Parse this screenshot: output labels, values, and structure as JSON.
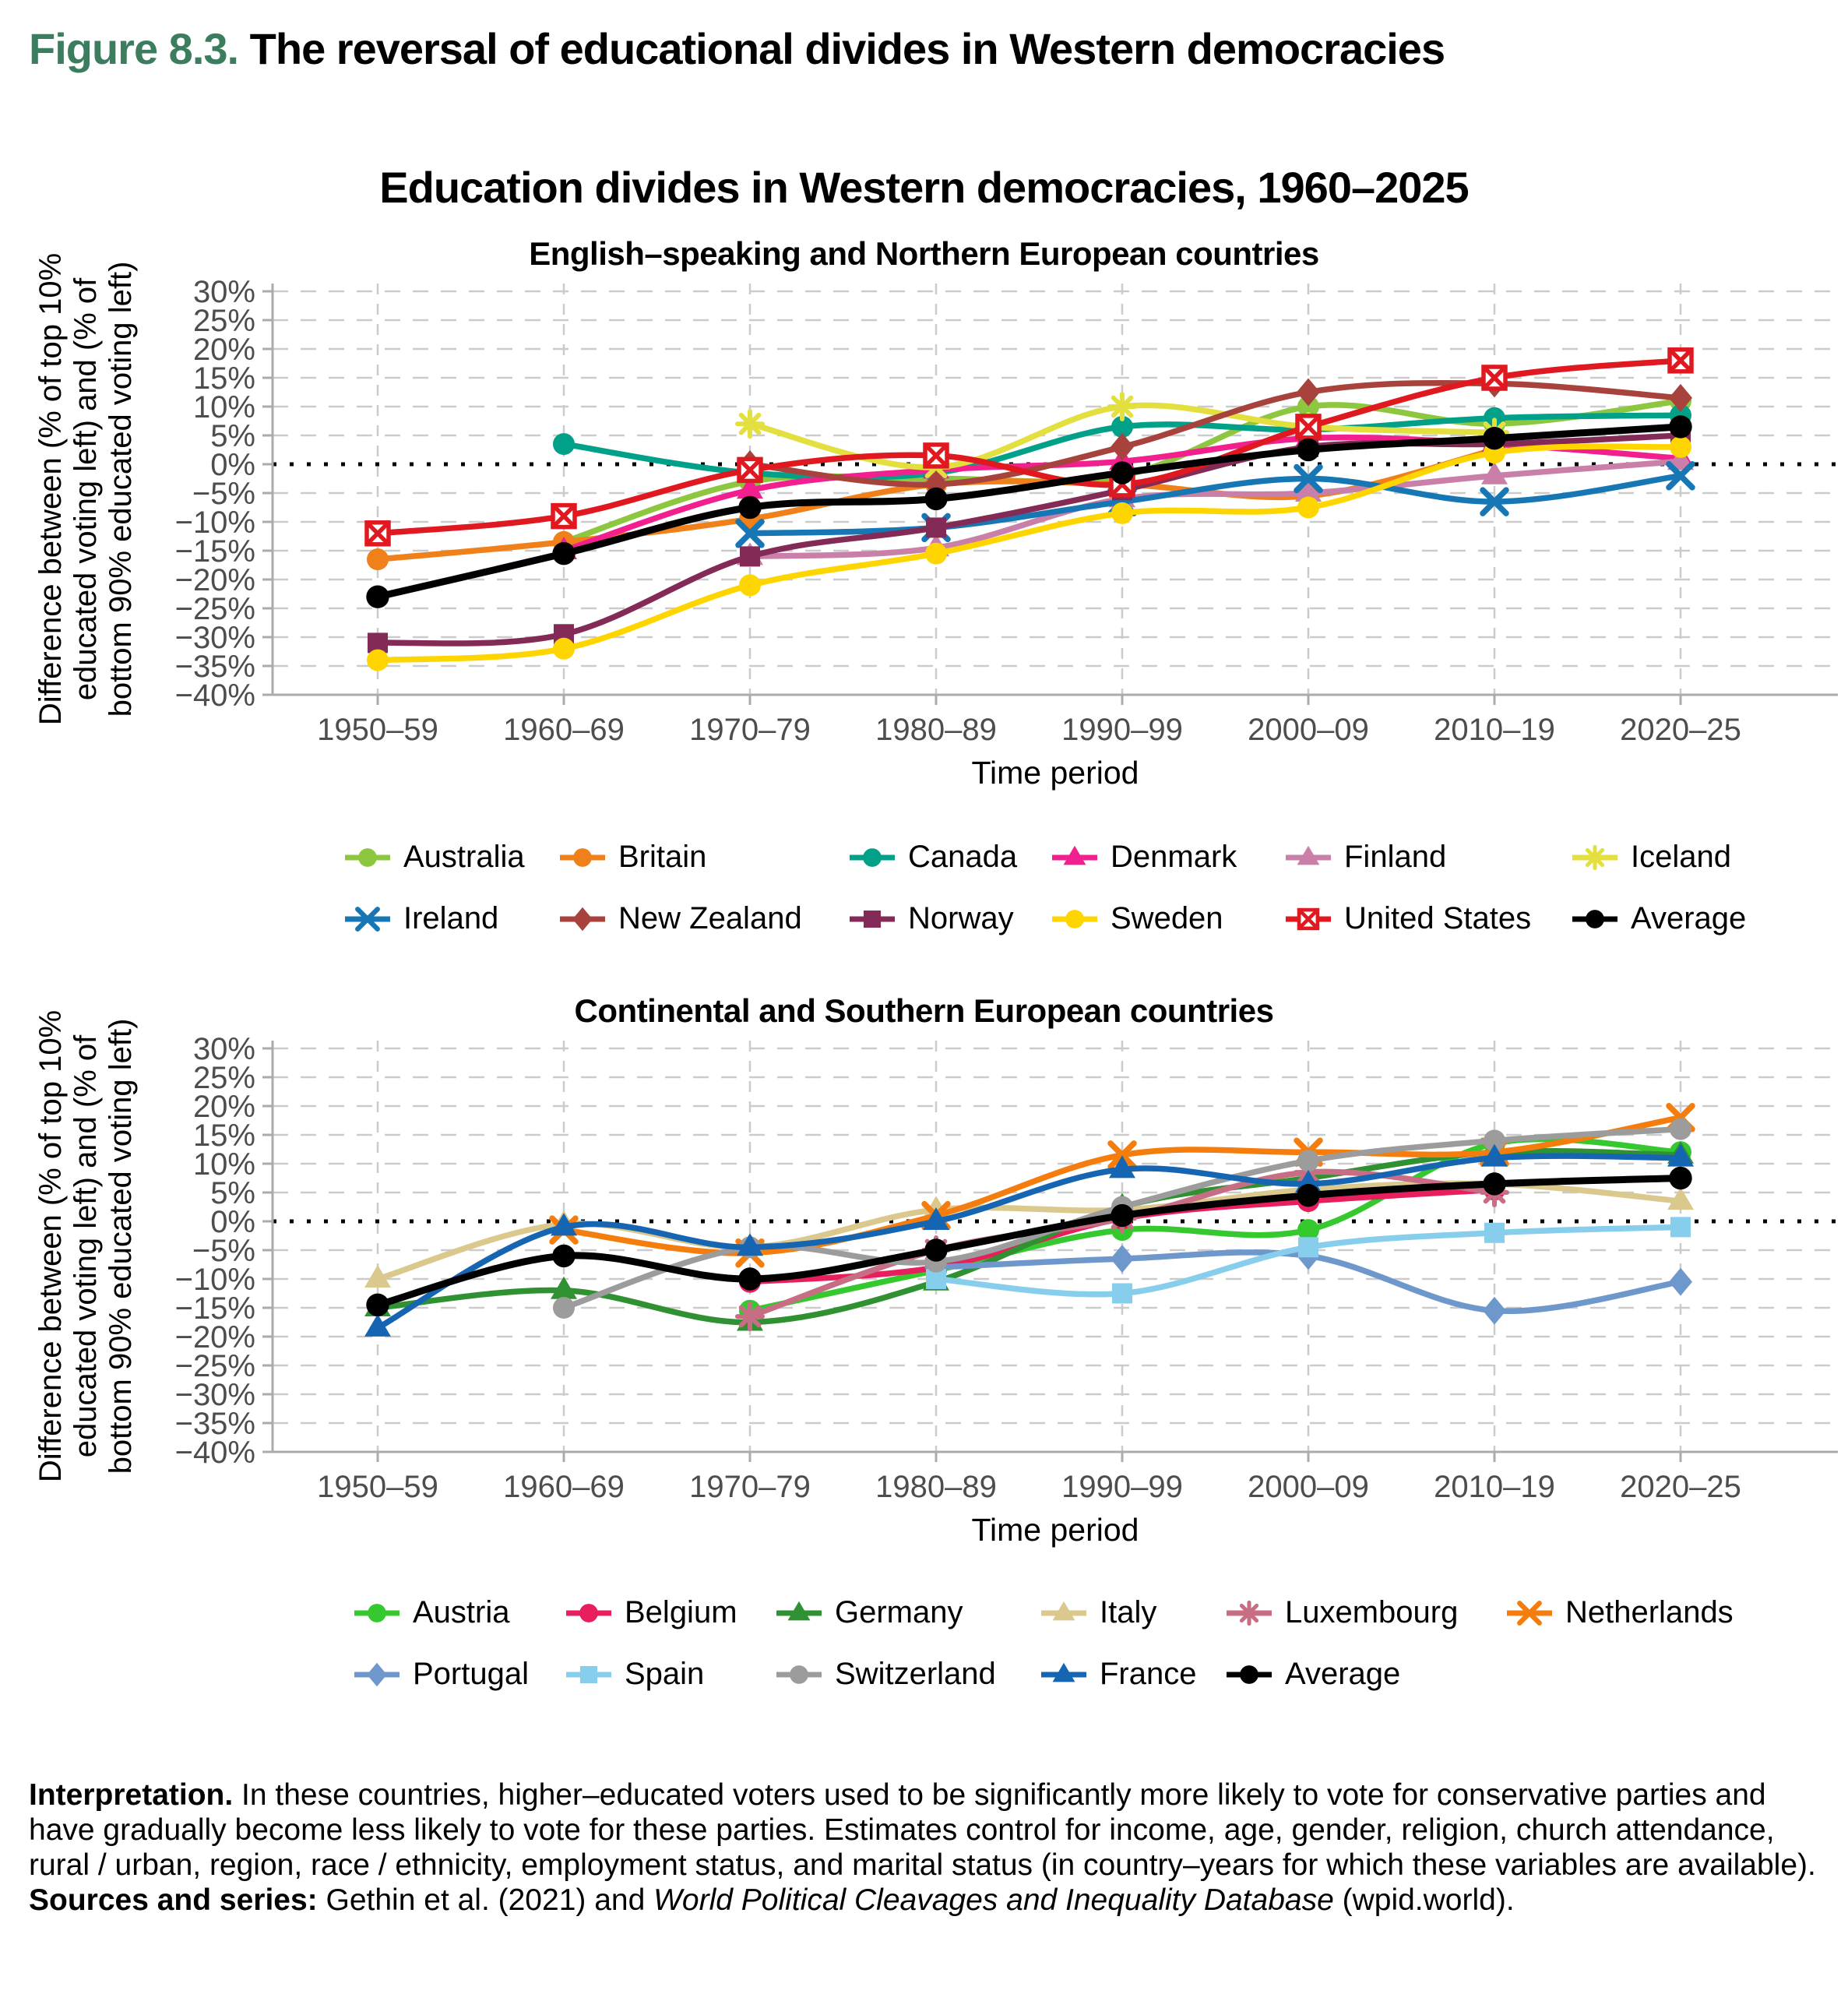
{
  "figure": {
    "label": "Figure 8.3.",
    "title": " The reversal of educational divides in Western democracies",
    "label_color": "#3B7D5E"
  },
  "main_title": "Education divides in Western democracies, 1960–2025",
  "interpretation": {
    "lead_bold": "Interpretation.",
    "body": " In these countries, higher–educated voters used to be significantly more likely to vote for conservative parties and have gradually become less likely to vote for these parties. Estimates control for income, age, gender, religion, church attendance, rural / urban, region, race / ethnicity, employment status, and marital status (in country–years for which these variables are available). ",
    "sources_bold": "Sources and series:",
    "sources_pre_italic": " Gethin et al. (2021) and ",
    "sources_italic": "World Political Cleavages and Inequality Database",
    "sources_post_italic": " (wpid.world)."
  },
  "chart_data": [
    {
      "type": "line",
      "title": "English–speaking and Northern European countries",
      "xlabel": "Time period",
      "ylabel_lines": [
        "Difference between (% of top 10%",
        "educated voting left) and (% of",
        "bottom 90% educated voting left)"
      ],
      "ylim": [
        -40,
        30
      ],
      "ytick_step": 5,
      "ytick_labels": [
        "30%",
        "25%",
        "20%",
        "15%",
        "10%",
        "5%",
        "0%",
        "−5%",
        "−10%",
        "−15%",
        "−20%",
        "−25%",
        "−30%",
        "−35%",
        "−40%"
      ],
      "grid": true,
      "zero_line": "dotted",
      "categories": [
        "1950–59",
        "1960–69",
        "1970–79",
        "1980–89",
        "1990–99",
        "2000–09",
        "2010–19",
        "2020–25"
      ],
      "series": [
        {
          "name": "Australia",
          "color": "#8DC63F",
          "marker": "circle",
          "values": [
            null,
            -13.5,
            -3,
            -2.5,
            -2,
            10,
            7,
            11
          ]
        },
        {
          "name": "Britain",
          "color": "#F08019",
          "marker": "circle",
          "values": [
            -16.5,
            -13.5,
            -9.5,
            -3.5,
            -3.5,
            -5.5,
            2.5,
            null
          ]
        },
        {
          "name": "Canada",
          "color": "#00A188",
          "marker": "circle",
          "values": [
            null,
            3.5,
            -1.5,
            -1.5,
            6.5,
            6,
            8,
            8.5
          ]
        },
        {
          "name": "Denmark",
          "color": "#F2208E",
          "marker": "triangle",
          "values": [
            null,
            -15,
            -4.5,
            -1,
            0.5,
            4.5,
            3.5,
            1
          ]
        },
        {
          "name": "Finland",
          "color": "#C97FA8",
          "marker": "triangle",
          "values": [
            null,
            null,
            -16,
            -14.5,
            -6,
            -5,
            -2,
            0.5
          ]
        },
        {
          "name": "Iceland",
          "color": "#E3DF3F",
          "marker": "asterisk",
          "values": [
            null,
            null,
            7,
            -0.5,
            10,
            6.5,
            5.5,
            null
          ]
        },
        {
          "name": "Ireland",
          "color": "#1777B5",
          "marker": "x",
          "values": [
            null,
            null,
            -12,
            -11,
            -6.5,
            -2.5,
            -6.5,
            -2
          ]
        },
        {
          "name": "New Zealand",
          "color": "#A8423C",
          "marker": "diamond",
          "values": [
            null,
            null,
            0,
            -3.5,
            3,
            12.5,
            14,
            11.5
          ]
        },
        {
          "name": "Norway",
          "color": "#832B56",
          "marker": "square",
          "values": [
            -31,
            -29.5,
            -16,
            -11,
            -4.5,
            3,
            3.5,
            5
          ]
        },
        {
          "name": "Sweden",
          "color": "#FFD500",
          "marker": "circle",
          "values": [
            -34,
            -32,
            -21,
            -15.5,
            -8.5,
            -7.5,
            2,
            3
          ]
        },
        {
          "name": "United States",
          "color": "#E0181F",
          "marker": "crossed-square",
          "values": [
            -12,
            -9,
            -1,
            1.5,
            -3.5,
            6.5,
            15,
            18
          ]
        },
        {
          "name": "Average",
          "color": "#000000",
          "marker": "circle",
          "values": [
            -23,
            -15.5,
            -7.5,
            -6,
            -1.5,
            2.5,
            4.5,
            6.5
          ]
        }
      ],
      "legend_rows": [
        [
          "Australia",
          "Britain",
          "Canada",
          "Denmark",
          "Finland",
          "Iceland"
        ],
        [
          "Ireland",
          "New Zealand",
          "Norway",
          "Sweden",
          "United States",
          "Average"
        ]
      ]
    },
    {
      "type": "line",
      "title": "Continental and Southern European countries",
      "xlabel": "Time period",
      "ylabel_lines": [
        "Difference between (% of top 10%",
        "educated voting left) and (% of",
        "bottom 90% educated voting left)"
      ],
      "ylim": [
        -40,
        30
      ],
      "ytick_step": 5,
      "ytick_labels": [
        "30%",
        "25%",
        "20%",
        "15%",
        "10%",
        "5%",
        "0%",
        "−5%",
        "−10%",
        "−15%",
        "−20%",
        "−25%",
        "−30%",
        "−35%",
        "−40%"
      ],
      "grid": true,
      "zero_line": "dotted",
      "categories": [
        "1950–59",
        "1960–69",
        "1970–79",
        "1980–89",
        "1990–99",
        "2000–09",
        "2010–19",
        "2020–25"
      ],
      "series": [
        {
          "name": "Austria",
          "color": "#35C92F",
          "marker": "circle",
          "values": [
            null,
            null,
            -15.5,
            -8.5,
            -1.5,
            -1.5,
            13.5,
            12
          ]
        },
        {
          "name": "Belgium",
          "color": "#E91E5C",
          "marker": "circle",
          "values": [
            null,
            null,
            -10.5,
            -8,
            0.5,
            3.5,
            5.5,
            null
          ]
        },
        {
          "name": "Germany",
          "color": "#2F9132",
          "marker": "triangle",
          "values": [
            -15,
            -12,
            -17.5,
            -10.5,
            2.5,
            7.5,
            12,
            11.5
          ]
        },
        {
          "name": "Italy",
          "color": "#DBC88D",
          "marker": "triangle",
          "values": [
            -10,
            -0.5,
            -4.5,
            2,
            2,
            5.5,
            6.5,
            3.5
          ]
        },
        {
          "name": "Luxembourg",
          "color": "#C76E84",
          "marker": "asterisk",
          "values": [
            null,
            null,
            -16.5,
            -5,
            0.5,
            8.5,
            5,
            null
          ]
        },
        {
          "name": "Netherlands",
          "color": "#F57D0E",
          "marker": "x",
          "values": [
            null,
            -1.5,
            -5.5,
            1,
            11.5,
            12,
            12,
            18
          ]
        },
        {
          "name": "Portugal",
          "color": "#6E97CB",
          "marker": "diamond",
          "values": [
            null,
            null,
            null,
            -8,
            -6.5,
            -6,
            -15.5,
            -10.5
          ]
        },
        {
          "name": "Spain",
          "color": "#86CEEC",
          "marker": "square",
          "values": [
            null,
            null,
            null,
            -10,
            -12.5,
            -4.5,
            -2,
            -1
          ]
        },
        {
          "name": "Switzerland",
          "color": "#9C9C9C",
          "marker": "circle",
          "values": [
            null,
            -15,
            -4.5,
            -7,
            2.5,
            10.5,
            14,
            16
          ]
        },
        {
          "name": "France",
          "color": "#1565B3",
          "marker": "triangle",
          "values": [
            -18.5,
            -1,
            -4.5,
            0,
            9,
            6.5,
            11,
            11
          ]
        },
        {
          "name": "Average",
          "color": "#000000",
          "marker": "circle",
          "values": [
            -14.5,
            -6,
            -10,
            -5,
            1,
            4.5,
            6.5,
            7.5
          ]
        }
      ],
      "legend_rows": [
        [
          "Austria",
          "Belgium",
          "Germany",
          "Italy",
          "Luxembourg",
          "Netherlands"
        ],
        [
          "Portugal",
          "Spain",
          "Switzerland",
          "France",
          "Average"
        ]
      ]
    }
  ]
}
